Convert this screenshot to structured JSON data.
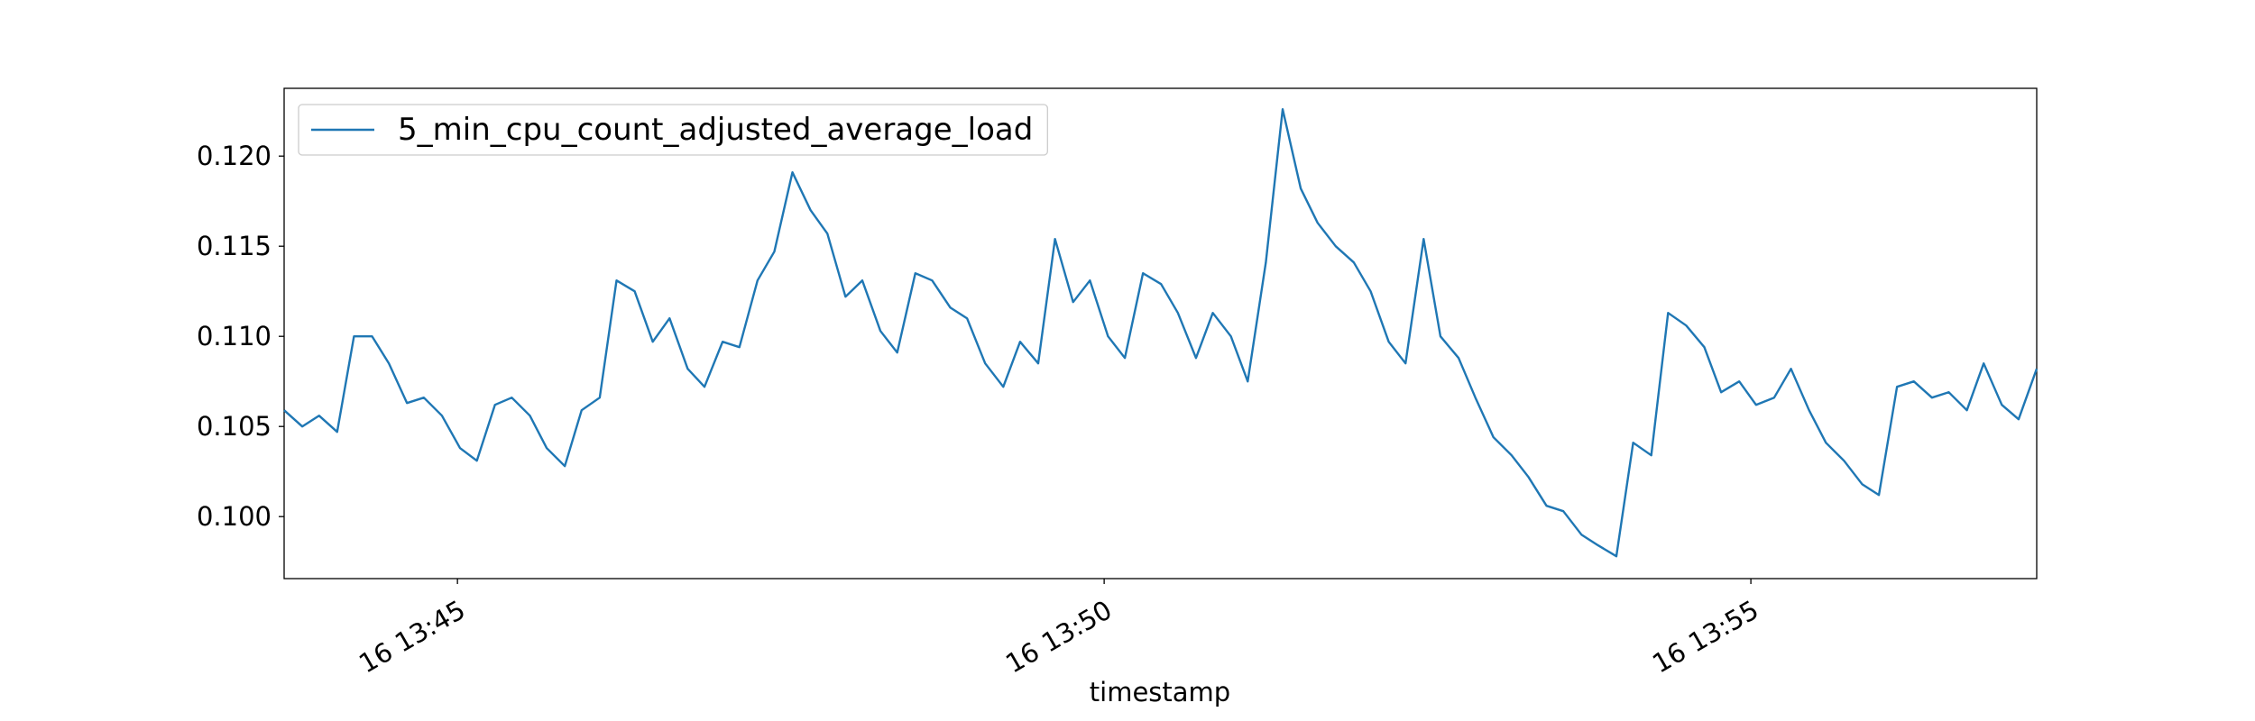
{
  "chart_data": {
    "type": "line",
    "x_label": "timestamp",
    "x": [
      43.66,
      43.8,
      43.93,
      44.07,
      44.2,
      44.34,
      44.47,
      44.61,
      44.74,
      44.88,
      45.02,
      45.15,
      45.29,
      45.42,
      45.56,
      45.69,
      45.83,
      45.96,
      46.1,
      46.23,
      46.37,
      46.51,
      46.64,
      46.78,
      46.91,
      47.05,
      47.18,
      47.32,
      47.45,
      47.59,
      47.73,
      47.86,
      48.0,
      48.13,
      48.27,
      48.4,
      48.54,
      48.67,
      48.81,
      48.94,
      49.08,
      49.22,
      49.35,
      49.49,
      49.62,
      49.76,
      49.89,
      50.03,
      50.16,
      50.3,
      50.44,
      50.57,
      50.71,
      50.84,
      50.98,
      51.11,
      51.25,
      51.38,
      51.52,
      51.65,
      51.79,
      51.93,
      52.06,
      52.2,
      52.33,
      52.47,
      52.6,
      52.74,
      52.87,
      53.01,
      53.15,
      53.28,
      53.42,
      53.55,
      53.69,
      53.82,
      53.96,
      54.09,
      54.23,
      54.36,
      54.5,
      54.64,
      54.77,
      54.91,
      55.04,
      55.18,
      55.31,
      55.45,
      55.58,
      55.72,
      55.86,
      55.99,
      56.13,
      56.26,
      56.4,
      56.53,
      56.67,
      56.8,
      56.94,
      57.07,
      57.21
    ],
    "series": [
      {
        "name": "5_min_cpu_count_adjusted_average_load",
        "color": "#1f77b4",
        "values": [
          0.1059,
          0.105,
          0.1056,
          0.1047,
          0.11,
          0.11,
          0.1085,
          0.1063,
          0.1066,
          0.1056,
          0.1038,
          0.1031,
          0.1062,
          0.1066,
          0.1056,
          0.1038,
          0.1028,
          0.1059,
          0.1066,
          0.1131,
          0.1125,
          0.1097,
          0.111,
          0.1082,
          0.1072,
          0.1097,
          0.1094,
          0.1131,
          0.1147,
          0.1191,
          0.117,
          0.1157,
          0.1122,
          0.1131,
          0.1103,
          0.1091,
          0.1135,
          0.1131,
          0.1116,
          0.111,
          0.1085,
          0.1072,
          0.1097,
          0.1085,
          0.1154,
          0.1119,
          0.1131,
          0.11,
          0.1088,
          0.1135,
          0.1129,
          0.1113,
          0.1088,
          0.1113,
          0.11,
          0.1075,
          0.1141,
          0.1226,
          0.1182,
          0.1163,
          0.115,
          0.1141,
          0.1125,
          0.1097,
          0.1085,
          0.1154,
          0.11,
          0.1088,
          0.1066,
          0.1044,
          0.1034,
          0.1022,
          0.1006,
          0.1003,
          0.099,
          0.0984,
          0.0978,
          0.1041,
          0.1034,
          0.1113,
          0.1106,
          0.1094,
          0.1069,
          0.1075,
          0.1062,
          0.1066,
          0.1082,
          0.1059,
          0.1041,
          0.1031,
          0.1018,
          0.1012,
          0.1072,
          0.1075,
          0.1066,
          0.1069,
          0.1059,
          0.1085,
          0.1062,
          0.1054,
          0.1082
        ]
      }
    ],
    "xlim": [
      43.66,
      57.21
    ],
    "xticks": [
      {
        "value": 45,
        "label": "16 13:45"
      },
      {
        "value": 50,
        "label": "16 13:50"
      },
      {
        "value": 55,
        "label": "16 13:55"
      }
    ],
    "ylim": [
      0.09656,
      0.12376
    ],
    "yticks": [
      {
        "value": 0.1,
        "label": "0.100"
      },
      0.105,
      {
        "value": 0.11,
        "label": "0.110"
      },
      0.115,
      {
        "value": 0.12,
        "label": "0.120"
      }
    ],
    "grid": false,
    "legend": "upper left"
  }
}
